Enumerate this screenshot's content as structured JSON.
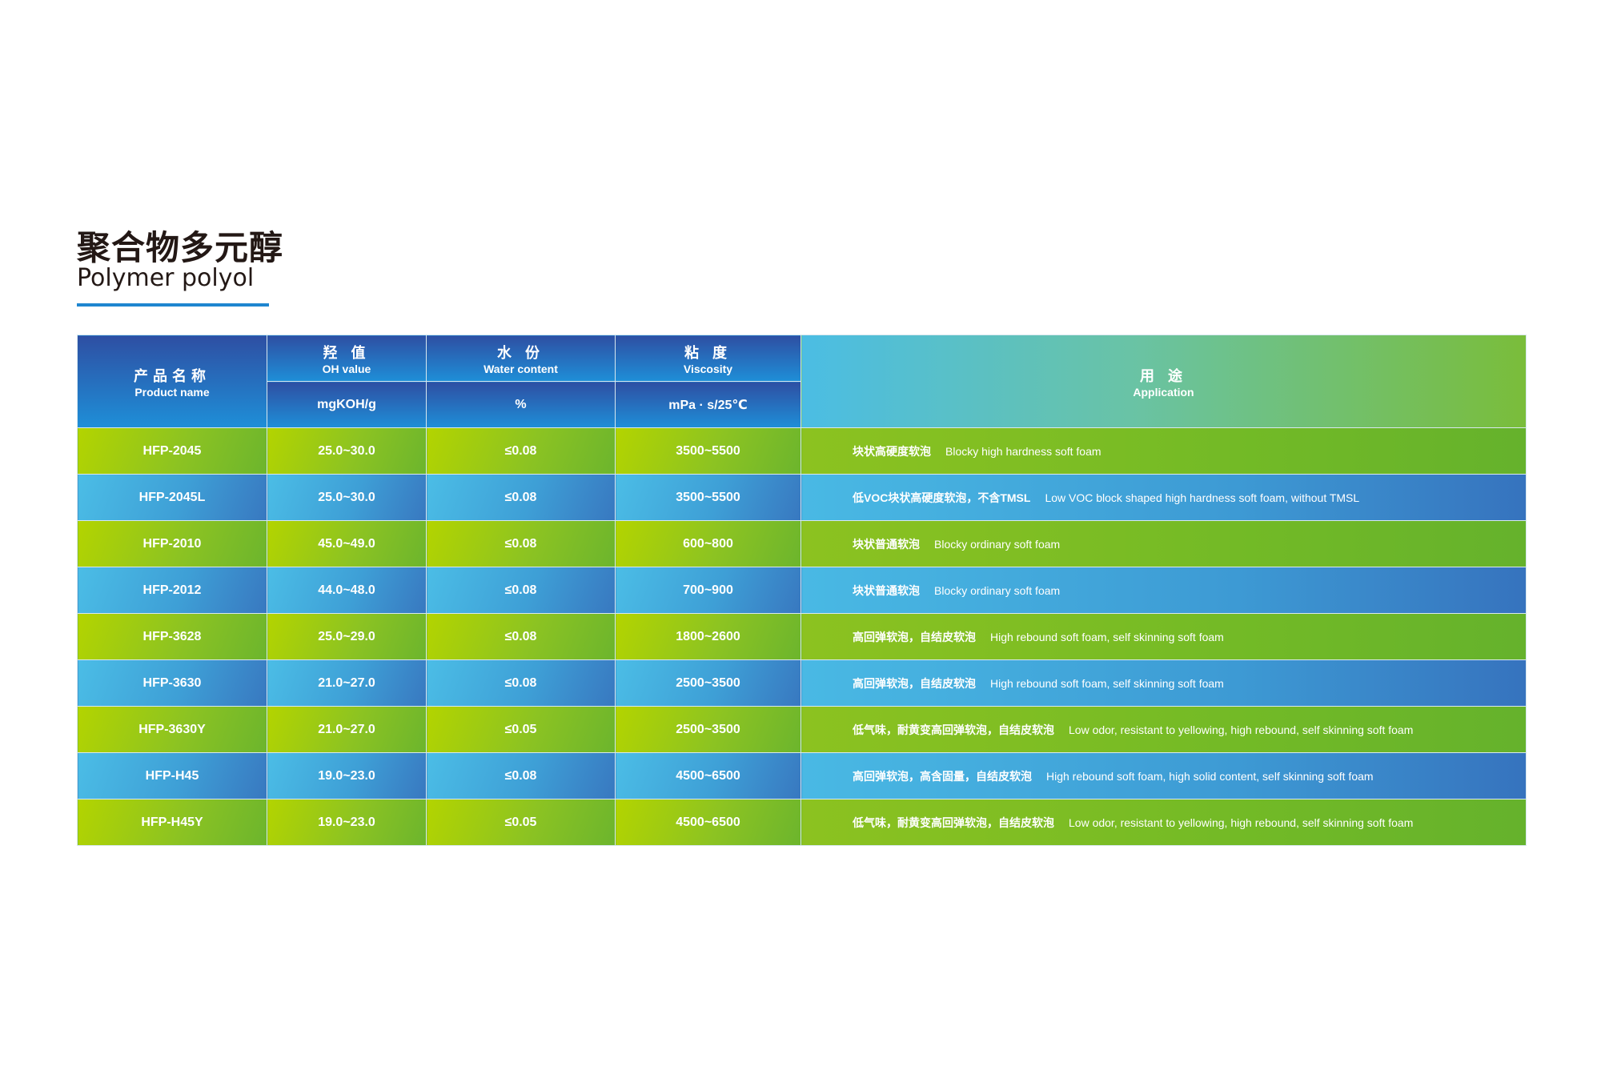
{
  "title": {
    "cn": "聚合物多元醇",
    "en": "Polymer polyol"
  },
  "colors": {
    "accent": "#1f86d0",
    "green_row": "#8cc322",
    "blue_row": "#3e9fd6",
    "header": "#2e4fa3"
  },
  "table": {
    "headers": {
      "product": {
        "cn": "产品名称",
        "en": "Product name"
      },
      "oh": {
        "cn": "羟 值",
        "en": "OH value",
        "unit": "mgKOH/g"
      },
      "water": {
        "cn": "水 份",
        "en": "Water content",
        "unit": "%"
      },
      "viscosity": {
        "cn": "粘 度",
        "en": "Viscosity",
        "unit": "mPa · s/25℃"
      },
      "application": {
        "cn": "用 途",
        "en": "Application"
      }
    },
    "rows": [
      {
        "name": "HFP-2045",
        "oh": "25.0~30.0",
        "water": "≤0.08",
        "visc": "3500~5500",
        "app_cn": "块状高硬度软泡",
        "app_en": "Blocky high hardness soft foam"
      },
      {
        "name": "HFP-2045L",
        "oh": "25.0~30.0",
        "water": "≤0.08",
        "visc": "3500~5500",
        "app_cn": "低VOC块状高硬度软泡，不含TMSL",
        "app_en": "Low VOC block shaped high hardness soft foam, without TMSL"
      },
      {
        "name": "HFP-2010",
        "oh": "45.0~49.0",
        "water": "≤0.08",
        "visc": "600~800",
        "app_cn": "块状普通软泡",
        "app_en": "Blocky ordinary soft foam"
      },
      {
        "name": "HFP-2012",
        "oh": "44.0~48.0",
        "water": "≤0.08",
        "visc": "700~900",
        "app_cn": "块状普通软泡",
        "app_en": "Blocky ordinary soft foam"
      },
      {
        "name": "HFP-3628",
        "oh": "25.0~29.0",
        "water": "≤0.08",
        "visc": "1800~2600",
        "app_cn": "高回弹软泡，自结皮软泡",
        "app_en": "High rebound soft foam, self skinning soft foam"
      },
      {
        "name": "HFP-3630",
        "oh": "21.0~27.0",
        "water": "≤0.08",
        "visc": "2500~3500",
        "app_cn": "高回弹软泡，自结皮软泡",
        "app_en": "High rebound soft foam, self skinning soft foam"
      },
      {
        "name": "HFP-3630Y",
        "oh": "21.0~27.0",
        "water": "≤0.05",
        "visc": "2500~3500",
        "app_cn": "低气味，耐黄变高回弹软泡，自结皮软泡",
        "app_en": "Low odor, resistant to yellowing, high rebound, self skinning soft foam"
      },
      {
        "name": "HFP-H45",
        "oh": "19.0~23.0",
        "water": "≤0.08",
        "visc": "4500~6500",
        "app_cn": "高回弹软泡，高含固量，自结皮软泡",
        "app_en": "High rebound soft foam, high solid content, self skinning soft foam"
      },
      {
        "name": "HFP-H45Y",
        "oh": "19.0~23.0",
        "water": "≤0.05",
        "visc": "4500~6500",
        "app_cn": "低气味，耐黄变高回弹软泡，自结皮软泡",
        "app_en": "Low odor, resistant to yellowing, high rebound, self skinning soft foam"
      }
    ]
  }
}
